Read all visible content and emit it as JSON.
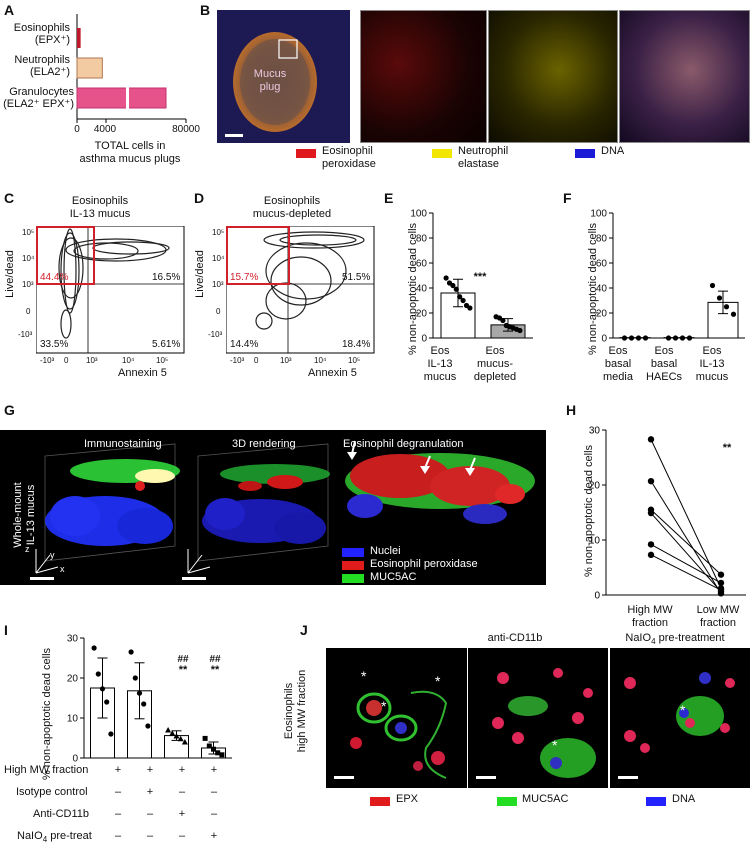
{
  "panels": {
    "A": "A",
    "B": "B",
    "C": "C",
    "D": "D",
    "E": "E",
    "F": "F",
    "G": "G",
    "H": "H",
    "I": "I",
    "J": "J"
  },
  "panel_a": {
    "cat1_l1": "Eosinophils",
    "cat1_l2": "(EPX⁺)",
    "cat2_l1": "Neutrophils",
    "cat2_l2": "(ELA2⁺)",
    "cat3_l1": "Granulocytes",
    "cat3_l2": "(ELA2⁺ EPX⁺)",
    "xlabel_l1": "TOTAL cells in",
    "xlabel_l2": "asthma mucus plugs",
    "colors": {
      "eos": "#c0182b",
      "neu": "#f2cba3",
      "gran": "#e6538a"
    }
  },
  "panel_b": {
    "plug_l1": "Mucus",
    "plug_l2": "plug",
    "leg_epx_l1": "Eosinophil",
    "leg_epx_l2": "peroxidase",
    "leg_ela_l1": "Neutrophil",
    "leg_ela_l2": "elastase",
    "leg_dna": "DNA",
    "colors": {
      "red": "#e0191f",
      "yellow": "#f2e600",
      "blue": "#1b1bd6"
    }
  },
  "panel_c": {
    "title_l1": "Eosinophils",
    "title_l2": "IL-13 mucus",
    "ylabel": "Live/dead",
    "xlabel": "Annexin 5",
    "q_tl": "44.4%",
    "q_tr": "16.5%",
    "q_bl": "33.5%",
    "q_br": "5.61%"
  },
  "panel_d": {
    "title_l1": "Eosinophils",
    "title_l2": "mucus-depleted",
    "ylabel": "Live/dead",
    "xlabel": "Annexin 5",
    "q_tl": "15.7%",
    "q_tr": "51.5%",
    "q_bl": "14.4%",
    "q_br": "18.4%"
  },
  "flow_ticks": {
    "x": [
      "-10³",
      "0",
      "10³",
      "10⁴",
      "10⁵"
    ],
    "y": [
      "10⁵",
      "10⁴",
      "10³",
      "0",
      "-10³"
    ]
  },
  "panel_e": {
    "ylabel": "% non-apoptotic dead cells",
    "sig": "***",
    "c1_l1": "Eos",
    "c1_l2": "IL-13",
    "c1_l3": "mucus",
    "c2_l1": "Eos",
    "c2_l2": "mucus-",
    "c2_l3": "depleted"
  },
  "panel_f": {
    "ylabel": "% non-apoptotic dead cells",
    "c1_l1": "Eos",
    "c1_l2": "basal",
    "c1_l3": "media",
    "c2_l1": "Eos",
    "c2_l2": "basal",
    "c2_l3": "HAECs",
    "c3_l1": "Eos",
    "c3_l2": "IL-13",
    "c3_l3": "mucus"
  },
  "panel_g": {
    "side_l1": "Whole-mount",
    "side_l2": "IL-13 mucus",
    "t1": "Immunostaining",
    "t2": "3D rendering",
    "t3": "Eosinophil degranulation",
    "leg_nuc": "Nuclei",
    "leg_epx": "Eosinophil peroxidase",
    "leg_muc": "MUC5AC",
    "axis_z": "z",
    "axis_y": "y",
    "axis_x": "x"
  },
  "panel_h": {
    "ylabel": "% non-apoptotic dead cells",
    "sig": "**",
    "c1_l1": "High MW",
    "c1_l2": "fraction",
    "c2_l1": "Low MW",
    "c2_l2": "fraction"
  },
  "panel_i": {
    "ylabel": "% non-apoptotic dead cells",
    "sig_hash": "##",
    "sig_star": "**",
    "row1": "High MW fraction",
    "row2": "Isotype control",
    "row3": "Anti-CD11b",
    "row4_pre": "NaIO",
    "row4_sub": "4",
    "row4_post": " pre-treat",
    "r1": [
      "+",
      "+",
      "+",
      "+"
    ],
    "r2": [
      "–",
      "+",
      "–",
      "–"
    ],
    "r3": [
      "–",
      "–",
      "+",
      "–"
    ],
    "r4": [
      "–",
      "–",
      "–",
      "+"
    ]
  },
  "panel_j": {
    "side_l1": "Eosinophils",
    "side_l2": "high MW fraction",
    "t2": "anti-CD11b",
    "t3_pre": "NaIO",
    "t3_sub": "4",
    "t3_post": " pre-treatment",
    "leg_epx": "EPX",
    "leg_muc": "MUC5AC",
    "leg_dna": "DNA",
    "star": "*"
  },
  "chart_data": [
    {
      "type": "bar",
      "panel": "A",
      "orientation": "horizontal",
      "categories": [
        "Eosinophils (EPX⁺)",
        "Neutrophils (ELA2⁺)",
        "Granulocytes (ELA2⁺ EPX⁺)"
      ],
      "values": [
        500,
        3500,
        61000
      ],
      "axis_break": 4000,
      "xticks": [
        "0",
        "4000",
        "80000"
      ],
      "xlim": [
        0,
        80000
      ],
      "xlabel": "TOTAL cells in asthma mucus plugs"
    },
    {
      "type": "bar",
      "panel": "E",
      "categories": [
        "Eos IL-13 mucus",
        "Eos mucus-depleted"
      ],
      "values": [
        36,
        10.5
      ],
      "errors": [
        11,
        5
      ],
      "points": [
        [
          48,
          44,
          42,
          39,
          33,
          30,
          26,
          24
        ],
        [
          17,
          16,
          14,
          10,
          9,
          8,
          7,
          6
        ]
      ],
      "yticks": [
        "0",
        "20",
        "40",
        "60",
        "80",
        "100"
      ],
      "ylim": [
        0,
        100
      ],
      "ylabel": "% non-apoptotic dead cells"
    },
    {
      "type": "bar",
      "panel": "F",
      "categories": [
        "Eos basal media",
        "Eos basal HAECs",
        "Eos IL-13 mucus"
      ],
      "values": [
        0.3,
        0.3,
        28.5
      ],
      "errors": [
        0,
        0,
        9
      ],
      "points": [
        [
          0,
          0,
          0,
          0
        ],
        [
          0,
          0,
          0,
          0
        ],
        [
          42,
          32,
          25,
          19
        ]
      ],
      "yticks": [
        "0",
        "20",
        "40",
        "60",
        "80",
        "100"
      ],
      "ylim": [
        0,
        100
      ],
      "ylabel": "% non-apoptotic dead cells"
    },
    {
      "type": "line",
      "panel": "H",
      "categories": [
        "High MW fraction",
        "Low MW fraction"
      ],
      "pairs": [
        [
          28.3,
          1.2
        ],
        [
          20.7,
          0.3
        ],
        [
          15.5,
          3.7
        ],
        [
          14.9,
          0.6
        ],
        [
          9.2,
          2.2
        ],
        [
          7.3,
          0.9
        ]
      ],
      "yticks": [
        "0",
        "10",
        "20",
        "30"
      ],
      "ylim": [
        0,
        30
      ],
      "ylabel": "% non-apoptotic dead cells"
    },
    {
      "type": "bar",
      "panel": "I",
      "categories": [
        "1",
        "2",
        "3",
        "4"
      ],
      "values": [
        17.5,
        16.8,
        5.6,
        2.5
      ],
      "errors": [
        7.5,
        7,
        1.2,
        1.5
      ],
      "points": [
        [
          27.5,
          21,
          17.3,
          14,
          6
        ],
        [
          26.5,
          20,
          16.2,
          13.5,
          8
        ],
        [
          7,
          6.2,
          5.5,
          4.8,
          4
        ],
        [
          4.9,
          3,
          2.2,
          1.3,
          0.8
        ]
      ],
      "yticks": [
        "0",
        "10",
        "20",
        "30"
      ],
      "ylim": [
        0,
        30
      ],
      "ylabel": "% non-apoptotic dead cells"
    }
  ]
}
